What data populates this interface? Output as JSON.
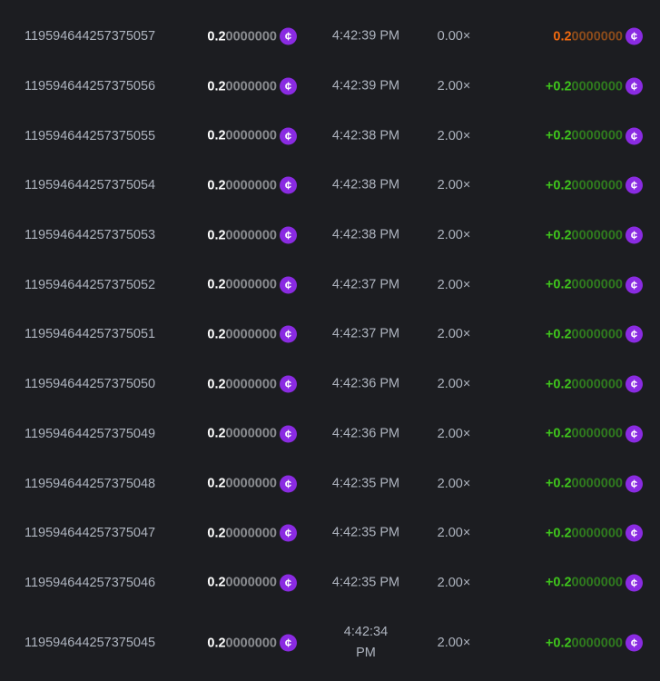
{
  "accent_colors": {
    "coin": "#8a2be2",
    "win": "#3fc51c",
    "loss": "#f0690f"
  },
  "currency_icon": "cent-coin-icon",
  "rows": [
    {
      "id": "119594644257375057",
      "amount": {
        "lead": "0.2",
        "trail": "0000000"
      },
      "time": "4:42:39 PM",
      "multiplier": "0.00×",
      "payout": {
        "lead": "0.2",
        "trail": "0000000"
      },
      "result": "loss"
    },
    {
      "id": "119594644257375056",
      "amount": {
        "lead": "0.2",
        "trail": "0000000"
      },
      "time": "4:42:39 PM",
      "multiplier": "2.00×",
      "payout": {
        "lead": "+0.2",
        "trail": "0000000"
      },
      "result": "win"
    },
    {
      "id": "119594644257375055",
      "amount": {
        "lead": "0.2",
        "trail": "0000000"
      },
      "time": "4:42:38 PM",
      "multiplier": "2.00×",
      "payout": {
        "lead": "+0.2",
        "trail": "0000000"
      },
      "result": "win"
    },
    {
      "id": "119594644257375054",
      "amount": {
        "lead": "0.2",
        "trail": "0000000"
      },
      "time": "4:42:38 PM",
      "multiplier": "2.00×",
      "payout": {
        "lead": "+0.2",
        "trail": "0000000"
      },
      "result": "win"
    },
    {
      "id": "119594644257375053",
      "amount": {
        "lead": "0.2",
        "trail": "0000000"
      },
      "time": "4:42:38 PM",
      "multiplier": "2.00×",
      "payout": {
        "lead": "+0.2",
        "trail": "0000000"
      },
      "result": "win"
    },
    {
      "id": "119594644257375052",
      "amount": {
        "lead": "0.2",
        "trail": "0000000"
      },
      "time": "4:42:37 PM",
      "multiplier": "2.00×",
      "payout": {
        "lead": "+0.2",
        "trail": "0000000"
      },
      "result": "win"
    },
    {
      "id": "119594644257375051",
      "amount": {
        "lead": "0.2",
        "trail": "0000000"
      },
      "time": "4:42:37 PM",
      "multiplier": "2.00×",
      "payout": {
        "lead": "+0.2",
        "trail": "0000000"
      },
      "result": "win"
    },
    {
      "id": "119594644257375050",
      "amount": {
        "lead": "0.2",
        "trail": "0000000"
      },
      "time": "4:42:36 PM",
      "multiplier": "2.00×",
      "payout": {
        "lead": "+0.2",
        "trail": "0000000"
      },
      "result": "win"
    },
    {
      "id": "119594644257375049",
      "amount": {
        "lead": "0.2",
        "trail": "0000000"
      },
      "time": "4:42:36 PM",
      "multiplier": "2.00×",
      "payout": {
        "lead": "+0.2",
        "trail": "0000000"
      },
      "result": "win"
    },
    {
      "id": "119594644257375048",
      "amount": {
        "lead": "0.2",
        "trail": "0000000"
      },
      "time": "4:42:35 PM",
      "multiplier": "2.00×",
      "payout": {
        "lead": "+0.2",
        "trail": "0000000"
      },
      "result": "win"
    },
    {
      "id": "119594644257375047",
      "amount": {
        "lead": "0.2",
        "trail": "0000000"
      },
      "time": "4:42:35 PM",
      "multiplier": "2.00×",
      "payout": {
        "lead": "+0.2",
        "trail": "0000000"
      },
      "result": "win"
    },
    {
      "id": "119594644257375046",
      "amount": {
        "lead": "0.2",
        "trail": "0000000"
      },
      "time": "4:42:35 PM",
      "multiplier": "2.00×",
      "payout": {
        "lead": "+0.2",
        "trail": "0000000"
      },
      "result": "win"
    },
    {
      "id": "119594644257375045",
      "amount": {
        "lead": "0.2",
        "trail": "0000000"
      },
      "time": "4:42:34 PM",
      "multiplier": "2.00×",
      "payout": {
        "lead": "+0.2",
        "trail": "0000000"
      },
      "result": "win"
    }
  ]
}
